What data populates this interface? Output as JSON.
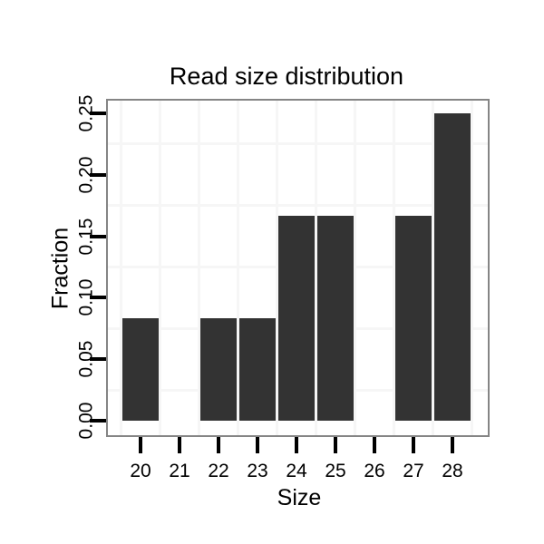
{
  "chart_data": {
    "type": "bar",
    "title": "Read size distribution",
    "xlabel": "Size",
    "ylabel": "Fraction",
    "categories": [
      "20",
      "21",
      "22",
      "23",
      "24",
      "25",
      "26",
      "27",
      "28"
    ],
    "values": [
      0.0833,
      0,
      0.0833,
      0.0833,
      0.1667,
      0.1667,
      0,
      0.1667,
      0.25
    ],
    "y_ticks": {
      "labels": [
        "0.00",
        "0.05",
        "0.10",
        "0.15",
        "0.20",
        "0.25"
      ],
      "values": [
        0,
        0.05,
        0.1,
        0.15,
        0.2,
        0.25
      ]
    },
    "minor_gridlines_y": [
      0.025,
      0.075,
      0.125,
      0.175,
      0.225
    ],
    "ylim": [
      -0.013,
      0.262
    ],
    "grid": "minor-only",
    "legend": false,
    "colors": {
      "bar": "#333333",
      "panel_border": "#858585",
      "gridline": "#f6f6f6",
      "tick": "#000000",
      "text": "#000000",
      "background": "#ffffff"
    }
  }
}
